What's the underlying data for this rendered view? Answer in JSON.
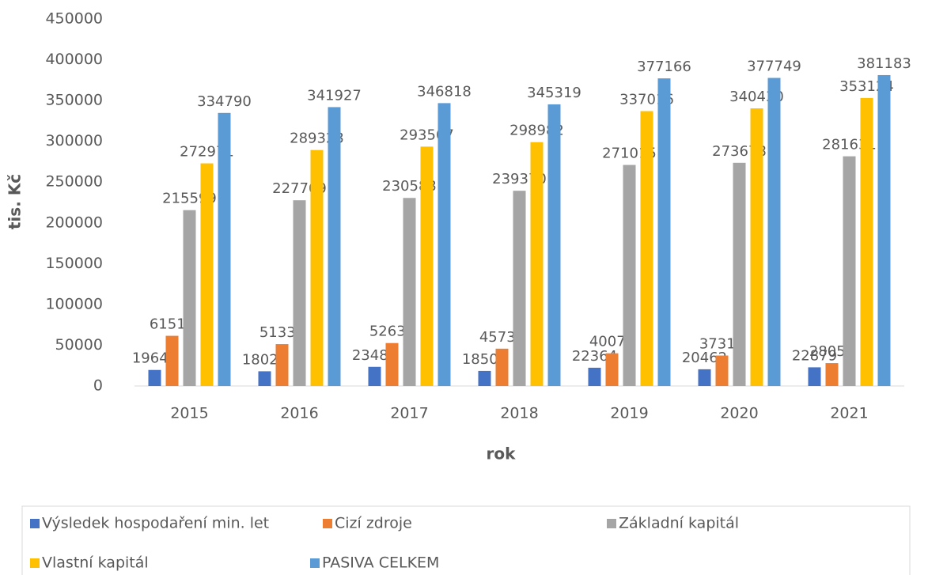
{
  "chart_data": {
    "type": "bar",
    "categories": [
      "2015",
      "2016",
      "2017",
      "2018",
      "2019",
      "2020",
      "2021"
    ],
    "series": [
      {
        "name": "Výsledek hospodaření min. let",
        "color": "#4472c4",
        "values": [
          19641,
          18022,
          23489,
          18503,
          22364,
          20462,
          22879
        ]
      },
      {
        "name": "Cizí zdroje",
        "color": "#ed7d31",
        "values": [
          61511,
          51335,
          52638,
          45732,
          40077,
          37319,
          28059
        ]
      },
      {
        "name": "Základní kapitál",
        "color": "#a5a5a5",
        "values": [
          215599,
          227709,
          230583,
          239370,
          271015,
          273678,
          281631
        ]
      },
      {
        "name": "Vlastní kapitál",
        "color": "#ffc000",
        "values": [
          272971,
          289323,
          293507,
          298982,
          337016,
          340430,
          353124
        ]
      },
      {
        "name": "PASIVA CELKEM",
        "color": "#5b9bd5",
        "values": [
          334790,
          341927,
          346818,
          345319,
          377166,
          377749,
          381183
        ]
      }
    ],
    "xlabel": "rok",
    "ylabel": "tis. Kč",
    "ylim": [
      0,
      450000
    ],
    "yticks": [
      0,
      50000,
      100000,
      150000,
      200000,
      250000,
      300000,
      350000,
      400000,
      450000
    ],
    "grid": false,
    "legend": "bottom"
  }
}
